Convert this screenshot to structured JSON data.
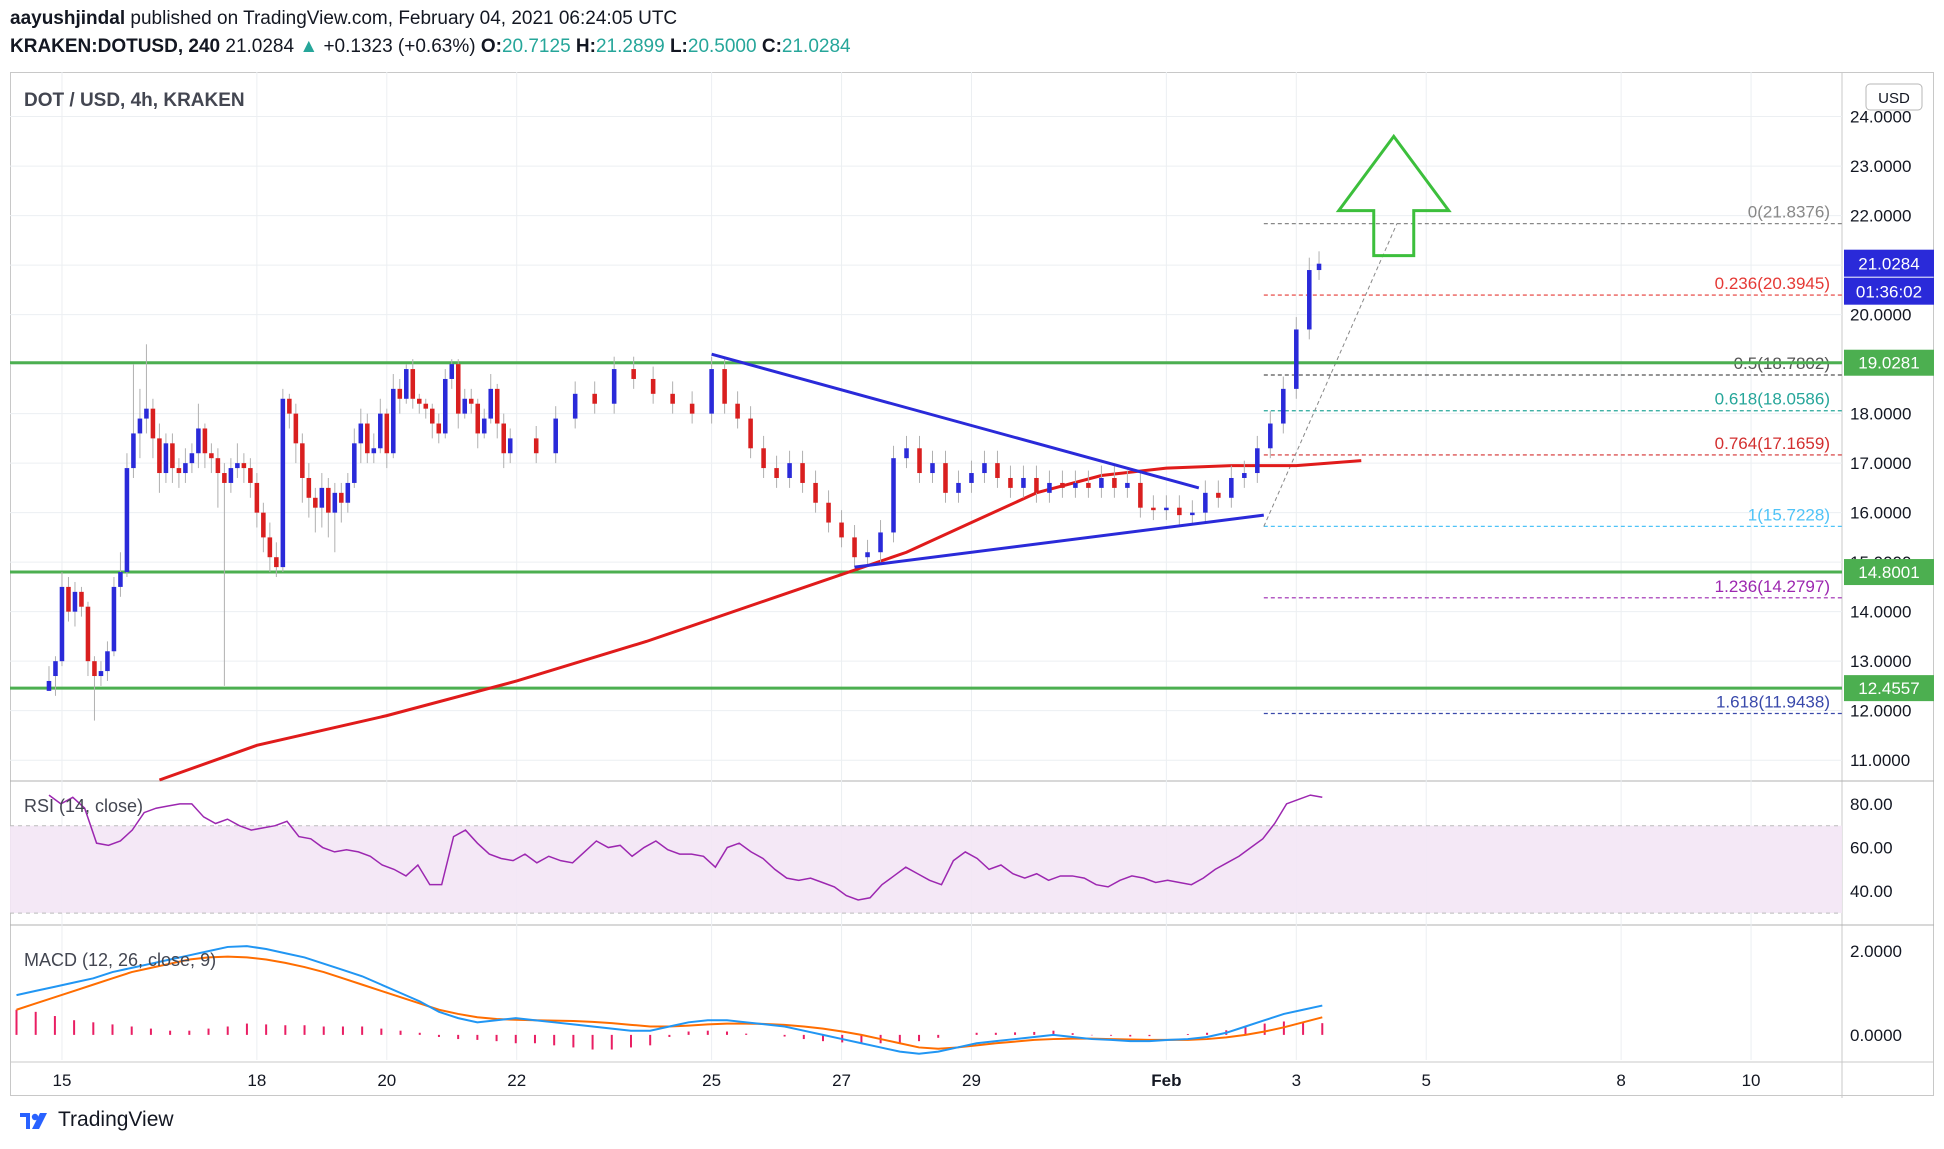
{
  "header": {
    "author": "aayushjindal",
    "published_text": "published on TradingView.com, February 04, 2021 06:24:05 UTC",
    "symbol": "KRAKEN:DOTUSD, 240",
    "last": "21.0284",
    "change_arrow": "▲",
    "change": "+0.1323 (+0.63%)",
    "o_label": "O:",
    "o_value": "20.7125",
    "h_label": "H:",
    "h_value": "21.2899",
    "l_label": "L:",
    "l_value": "20.5000",
    "c_label": "C:",
    "c_value": "21.0284"
  },
  "footer": {
    "brand": "TradingView"
  },
  "colors": {
    "up": "#2a2ad9",
    "down": "#d91f1f",
    "green": "#4caf50",
    "ma": "#e01b1b",
    "trend": "#2a2ad9",
    "rsi": "#9c27b0",
    "macd": "#2196f3",
    "signal": "#ff6d00",
    "hist": "#e91e63"
  },
  "chart_data": [
    {
      "type": "candlestick",
      "title": "DOT / USD, 4h, KRAKEN",
      "currency_label": "USD",
      "ylim": [
        10.6,
        24.9
      ],
      "y_ticks": [
        11,
        12,
        13,
        14,
        15,
        16,
        17,
        18,
        19,
        20,
        21,
        22,
        23,
        24
      ],
      "y_tick_labels": [
        "11.0000",
        "12.0000",
        "13.0000",
        "14.0000",
        "15.0000",
        "16.0000",
        "17.0000",
        "18.0000",
        "19.0000",
        "20.0000",
        "21.0000",
        "22.0000",
        "23.0000",
        "24.0000"
      ],
      "x_labels": [
        "15",
        "18",
        "20",
        "22",
        "25",
        "27",
        "29",
        "Feb",
        "3",
        "5",
        "8",
        "10"
      ],
      "x_label_days": [
        15,
        18,
        20,
        22,
        25,
        27,
        29,
        32,
        34,
        36,
        39,
        41
      ],
      "x_range_days": [
        14.2,
        42.4
      ],
      "candles": [
        [
          14.8,
          12.4,
          12.6,
          12.4,
          12.9
        ],
        [
          14.9,
          12.7,
          13.0,
          12.3,
          13.1
        ],
        [
          15.0,
          13.0,
          14.5,
          12.9,
          14.8
        ],
        [
          15.1,
          14.5,
          14.0,
          13.8,
          14.7
        ],
        [
          15.2,
          14.0,
          14.4,
          13.7,
          14.6
        ],
        [
          15.3,
          14.4,
          14.1,
          13.9,
          14.5
        ],
        [
          15.4,
          14.1,
          13.0,
          12.7,
          14.2
        ],
        [
          15.5,
          13.0,
          12.7,
          11.8,
          13.1
        ],
        [
          15.6,
          12.7,
          12.8,
          12.5,
          13.0
        ],
        [
          15.7,
          12.8,
          13.2,
          12.6,
          13.4
        ],
        [
          15.8,
          13.2,
          14.5,
          13.1,
          14.7
        ],
        [
          15.9,
          14.5,
          14.8,
          14.3,
          15.2
        ],
        [
          16.0,
          14.8,
          16.9,
          14.7,
          17.2
        ],
        [
          16.1,
          16.9,
          17.6,
          16.7,
          19.0
        ],
        [
          16.2,
          17.6,
          17.9,
          17.1,
          18.5
        ],
        [
          16.3,
          17.9,
          18.1,
          17.6,
          19.4
        ],
        [
          16.4,
          18.1,
          17.5,
          17.1,
          18.3
        ],
        [
          16.5,
          17.5,
          16.8,
          16.4,
          17.8
        ],
        [
          16.6,
          16.8,
          17.4,
          16.6,
          17.6
        ],
        [
          16.7,
          17.4,
          16.9,
          16.6,
          17.6
        ],
        [
          16.8,
          16.9,
          16.8,
          16.5,
          17.1
        ],
        [
          16.9,
          16.8,
          17.0,
          16.6,
          17.3
        ],
        [
          17.0,
          17.0,
          17.2,
          16.8,
          17.4
        ],
        [
          17.1,
          17.2,
          17.7,
          16.9,
          18.2
        ],
        [
          17.2,
          17.7,
          17.2,
          16.9,
          17.8
        ],
        [
          17.3,
          17.2,
          17.1,
          16.8,
          17.4
        ],
        [
          17.4,
          17.1,
          16.8,
          16.1,
          17.3
        ],
        [
          17.5,
          16.8,
          16.6,
          12.5,
          17.0
        ],
        [
          17.6,
          16.6,
          16.9,
          16.4,
          17.1
        ],
        [
          17.7,
          16.9,
          17.0,
          16.7,
          17.4
        ],
        [
          17.8,
          17.0,
          16.9,
          16.6,
          17.2
        ],
        [
          17.9,
          16.9,
          16.6,
          16.3,
          17.1
        ],
        [
          18.0,
          16.6,
          16.0,
          15.7,
          16.8
        ],
        [
          18.1,
          16.0,
          15.5,
          15.2,
          16.2
        ],
        [
          18.2,
          15.5,
          15.1,
          14.8,
          15.8
        ],
        [
          18.3,
          15.1,
          14.9,
          14.7,
          15.4
        ],
        [
          18.4,
          14.9,
          18.3,
          14.8,
          18.5
        ],
        [
          18.5,
          18.3,
          18.0,
          17.7,
          18.4
        ],
        [
          18.6,
          18.0,
          17.4,
          17.0,
          18.2
        ],
        [
          18.7,
          17.4,
          16.7,
          16.2,
          17.6
        ],
        [
          18.8,
          16.7,
          16.3,
          15.9,
          17.0
        ],
        [
          18.9,
          16.3,
          16.1,
          15.6,
          16.5
        ],
        [
          19.0,
          16.1,
          16.5,
          15.7,
          16.8
        ],
        [
          19.1,
          16.5,
          16.0,
          15.5,
          16.7
        ],
        [
          19.2,
          16.0,
          16.4,
          15.2,
          16.6
        ],
        [
          19.3,
          16.4,
          16.2,
          15.8,
          16.6
        ],
        [
          19.4,
          16.2,
          16.6,
          16.0,
          16.8
        ],
        [
          19.5,
          16.6,
          17.4,
          16.5,
          17.7
        ],
        [
          19.6,
          17.4,
          17.8,
          17.0,
          18.1
        ],
        [
          19.7,
          17.8,
          17.2,
          17.0,
          18.0
        ],
        [
          19.8,
          17.2,
          17.3,
          17.0,
          17.6
        ],
        [
          19.9,
          17.3,
          18.0,
          17.2,
          18.3
        ],
        [
          20.0,
          18.0,
          17.2,
          16.9,
          18.1
        ],
        [
          20.1,
          17.2,
          18.5,
          17.1,
          18.8
        ],
        [
          20.2,
          18.5,
          18.3,
          18.0,
          18.7
        ],
        [
          20.3,
          18.3,
          18.9,
          18.2,
          19.0
        ],
        [
          20.4,
          18.9,
          18.3,
          18.1,
          19.1
        ],
        [
          20.5,
          18.3,
          18.2,
          18.0,
          18.4
        ],
        [
          20.6,
          18.2,
          18.1,
          17.9,
          18.3
        ],
        [
          20.7,
          18.1,
          17.8,
          17.5,
          18.2
        ],
        [
          20.8,
          17.8,
          17.6,
          17.4,
          18.0
        ],
        [
          20.9,
          17.6,
          18.7,
          17.5,
          18.9
        ],
        [
          21.0,
          18.7,
          19.0,
          18.5,
          19.1
        ],
        [
          21.1,
          19.0,
          18.0,
          17.7,
          19.1
        ],
        [
          21.2,
          18.0,
          18.3,
          17.9,
          18.5
        ],
        [
          21.3,
          18.3,
          18.2,
          18.0,
          18.5
        ],
        [
          21.4,
          18.2,
          17.6,
          17.3,
          18.3
        ],
        [
          21.5,
          17.6,
          17.9,
          17.5,
          18.1
        ],
        [
          21.6,
          17.9,
          18.5,
          17.8,
          18.8
        ],
        [
          21.7,
          18.5,
          17.8,
          17.5,
          18.6
        ],
        [
          21.8,
          17.8,
          17.2,
          16.9,
          18.0
        ],
        [
          21.9,
          17.2,
          17.5,
          17.0,
          17.7
        ]
      ],
      "horizontal_levels": [
        {
          "value": 19.0281,
          "label": "19.0281",
          "color": "#4caf50"
        },
        {
          "value": 14.8001,
          "label": "14.8001",
          "color": "#4caf50"
        },
        {
          "value": 12.4557,
          "label": "12.4557",
          "color": "#4caf50"
        }
      ],
      "last_price_label": "21.0284",
      "countdown_label": "01:36:02",
      "fib_levels": [
        {
          "label": "0(21.8376)",
          "value": 21.8376,
          "color": "#888888"
        },
        {
          "label": "0.236(20.3945)",
          "value": 20.3945,
          "color": "#e53935"
        },
        {
          "label": "0.5(18.7802)",
          "value": 18.7802,
          "color": "#555555"
        },
        {
          "label": "0.618(18.0586)",
          "value": 18.0586,
          "color": "#26a69a"
        },
        {
          "label": "0.764(17.1659)",
          "value": 17.1659,
          "color": "#d32f2f"
        },
        {
          "label": "1(15.7228)",
          "value": 15.7228,
          "color": "#4fc3f7"
        },
        {
          "label": "1.236(14.2797)",
          "value": 14.2797,
          "color": "#9c27b0"
        },
        {
          "label": "1.618(11.9438)",
          "value": 11.9438,
          "color": "#3949ab"
        }
      ],
      "trendlines": [
        {
          "from": [
            25.0,
            19.2
          ],
          "to": [
            32.5,
            16.5
          ]
        },
        {
          "from": [
            27.2,
            14.9
          ],
          "to": [
            33.5,
            15.95
          ]
        }
      ],
      "moving_average": [
        [
          16.5,
          10.6
        ],
        [
          18.0,
          11.3
        ],
        [
          20.0,
          11.9
        ],
        [
          22.0,
          12.6
        ],
        [
          24.0,
          13.4
        ],
        [
          26.0,
          14.3
        ],
        [
          28.0,
          15.2
        ],
        [
          29.0,
          15.8
        ],
        [
          30.0,
          16.4
        ],
        [
          31.0,
          16.75
        ],
        [
          32.0,
          16.9
        ],
        [
          33.0,
          16.95
        ],
        [
          34.0,
          16.95
        ],
        [
          35.0,
          17.05
        ]
      ],
      "target_arrow": "up"
    },
    {
      "type": "line",
      "title": "RSI (14, close)",
      "ylim": [
        25,
        90
      ],
      "band": [
        30,
        70
      ],
      "y_ticks": [
        40,
        60,
        80
      ],
      "y_tick_labels": [
        "40.00",
        "60.00",
        "80.00"
      ],
      "values": [
        84,
        80,
        83,
        78,
        62,
        61,
        63,
        68,
        76,
        78,
        79,
        80,
        80,
        74,
        71,
        73,
        70,
        68,
        69,
        70,
        72,
        65,
        64,
        60,
        58,
        59,
        58,
        56,
        52,
        50,
        47,
        52,
        43,
        43,
        65,
        68,
        62,
        57,
        55,
        54,
        57,
        53,
        56,
        54,
        53,
        58,
        63,
        60,
        61,
        56,
        60,
        63,
        59,
        57,
        57,
        56,
        51,
        60,
        62,
        58,
        55,
        50,
        46,
        45,
        46,
        44,
        42,
        38,
        36,
        37,
        43,
        47,
        51,
        48,
        45,
        43,
        54,
        58,
        55,
        50,
        52,
        48,
        46,
        48,
        45,
        47,
        47,
        46,
        43,
        42,
        45,
        47,
        46,
        44,
        45,
        44,
        43,
        46,
        50,
        53,
        56,
        60,
        64,
        71,
        80,
        82,
        84,
        83
      ]
    },
    {
      "type": "line",
      "title": "MACD (12, 26, close, 9)",
      "ylim": [
        -0.6,
        2.6
      ],
      "y_ticks": [
        0,
        2
      ],
      "y_tick_labels": [
        "0.0000",
        "2.0000"
      ],
      "macd": [
        0.95,
        1.05,
        1.15,
        1.25,
        1.35,
        1.5,
        1.6,
        1.7,
        1.8,
        1.9,
        2.0,
        2.1,
        2.12,
        2.05,
        1.95,
        1.85,
        1.7,
        1.55,
        1.4,
        1.2,
        1.0,
        0.8,
        0.55,
        0.4,
        0.3,
        0.35,
        0.4,
        0.35,
        0.3,
        0.25,
        0.2,
        0.15,
        0.1,
        0.1,
        0.2,
        0.3,
        0.35,
        0.35,
        0.3,
        0.25,
        0.2,
        0.1,
        0.0,
        -0.1,
        -0.2,
        -0.3,
        -0.4,
        -0.45,
        -0.4,
        -0.3,
        -0.2,
        -0.15,
        -0.1,
        -0.05,
        0.0,
        -0.05,
        -0.1,
        -0.12,
        -0.15,
        -0.15,
        -0.12,
        -0.1,
        -0.05,
        0.05,
        0.2,
        0.35,
        0.5,
        0.6,
        0.7
      ],
      "signal": [
        0.6,
        0.75,
        0.9,
        1.05,
        1.2,
        1.35,
        1.5,
        1.6,
        1.7,
        1.8,
        1.85,
        1.87,
        1.85,
        1.8,
        1.72,
        1.62,
        1.5,
        1.35,
        1.2,
        1.05,
        0.9,
        0.75,
        0.6,
        0.5,
        0.42,
        0.38,
        0.36,
        0.35,
        0.34,
        0.33,
        0.31,
        0.28,
        0.24,
        0.2,
        0.2,
        0.22,
        0.25,
        0.27,
        0.27,
        0.26,
        0.24,
        0.2,
        0.15,
        0.08,
        0.0,
        -0.1,
        -0.2,
        -0.3,
        -0.33,
        -0.3,
        -0.25,
        -0.2,
        -0.16,
        -0.12,
        -0.1,
        -0.09,
        -0.09,
        -0.1,
        -0.11,
        -0.12,
        -0.12,
        -0.12,
        -0.1,
        -0.06,
        0.0,
        0.08,
        0.18,
        0.3,
        0.42
      ],
      "histogram": [
        0.6,
        0.55,
        0.45,
        0.35,
        0.3,
        0.25,
        0.2,
        0.15,
        0.1,
        0.1,
        0.15,
        0.2,
        0.27,
        0.25,
        0.23,
        0.23,
        0.2,
        0.2,
        0.2,
        0.15,
        0.1,
        0.05,
        -0.05,
        -0.1,
        -0.12,
        -0.15,
        -0.2,
        -0.2,
        -0.25,
        -0.3,
        -0.35,
        -0.35,
        -0.3,
        -0.25,
        -0.05,
        0.08,
        0.1,
        0.08,
        0.03,
        0.0,
        -0.04,
        -0.1,
        -0.15,
        -0.18,
        -0.2,
        -0.2,
        -0.2,
        -0.15,
        -0.07,
        0.0,
        0.05,
        0.05,
        0.06,
        0.07,
        0.1,
        0.04,
        -0.01,
        -0.02,
        -0.04,
        -0.03,
        0.0,
        0.02,
        0.05,
        0.11,
        0.2,
        0.27,
        0.32,
        0.3,
        0.28
      ]
    }
  ]
}
